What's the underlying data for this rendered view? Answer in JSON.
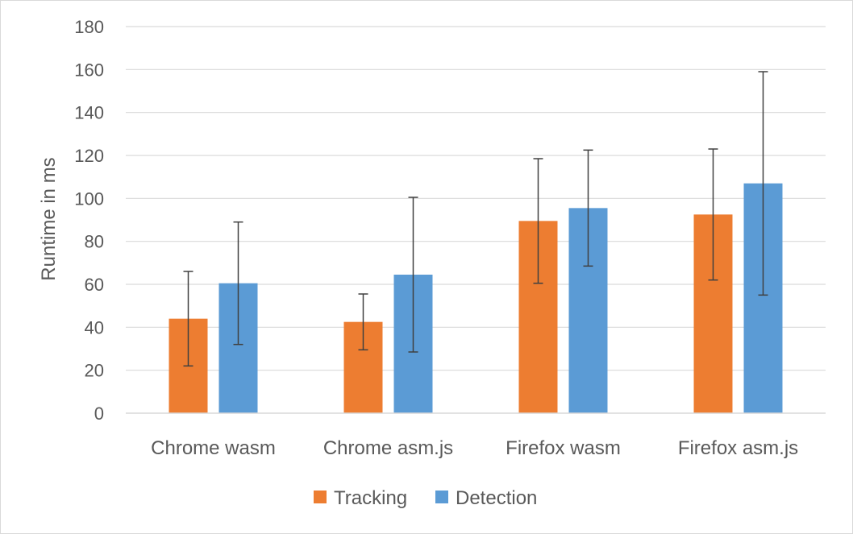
{
  "chart_data": {
    "type": "bar",
    "title": "",
    "xlabel": "",
    "ylabel": "Runtime in ms",
    "ylim": [
      0,
      180
    ],
    "ytick_step": 20,
    "grid": true,
    "legend_position": "bottom",
    "categories": [
      "Chrome wasm",
      "Chrome asm.js",
      "Firefox wasm",
      "Firefox asm.js"
    ],
    "series": [
      {
        "name": "Tracking",
        "color": "#ed7d31",
        "values": [
          44,
          42.5,
          89.5,
          92.5
        ],
        "error": [
          22,
          13,
          29,
          30.5
        ]
      },
      {
        "name": "Detection",
        "color": "#5b9bd5",
        "values": [
          60.5,
          64.5,
          95.5,
          107
        ],
        "error": [
          28.5,
          36,
          27,
          52
        ]
      }
    ]
  }
}
